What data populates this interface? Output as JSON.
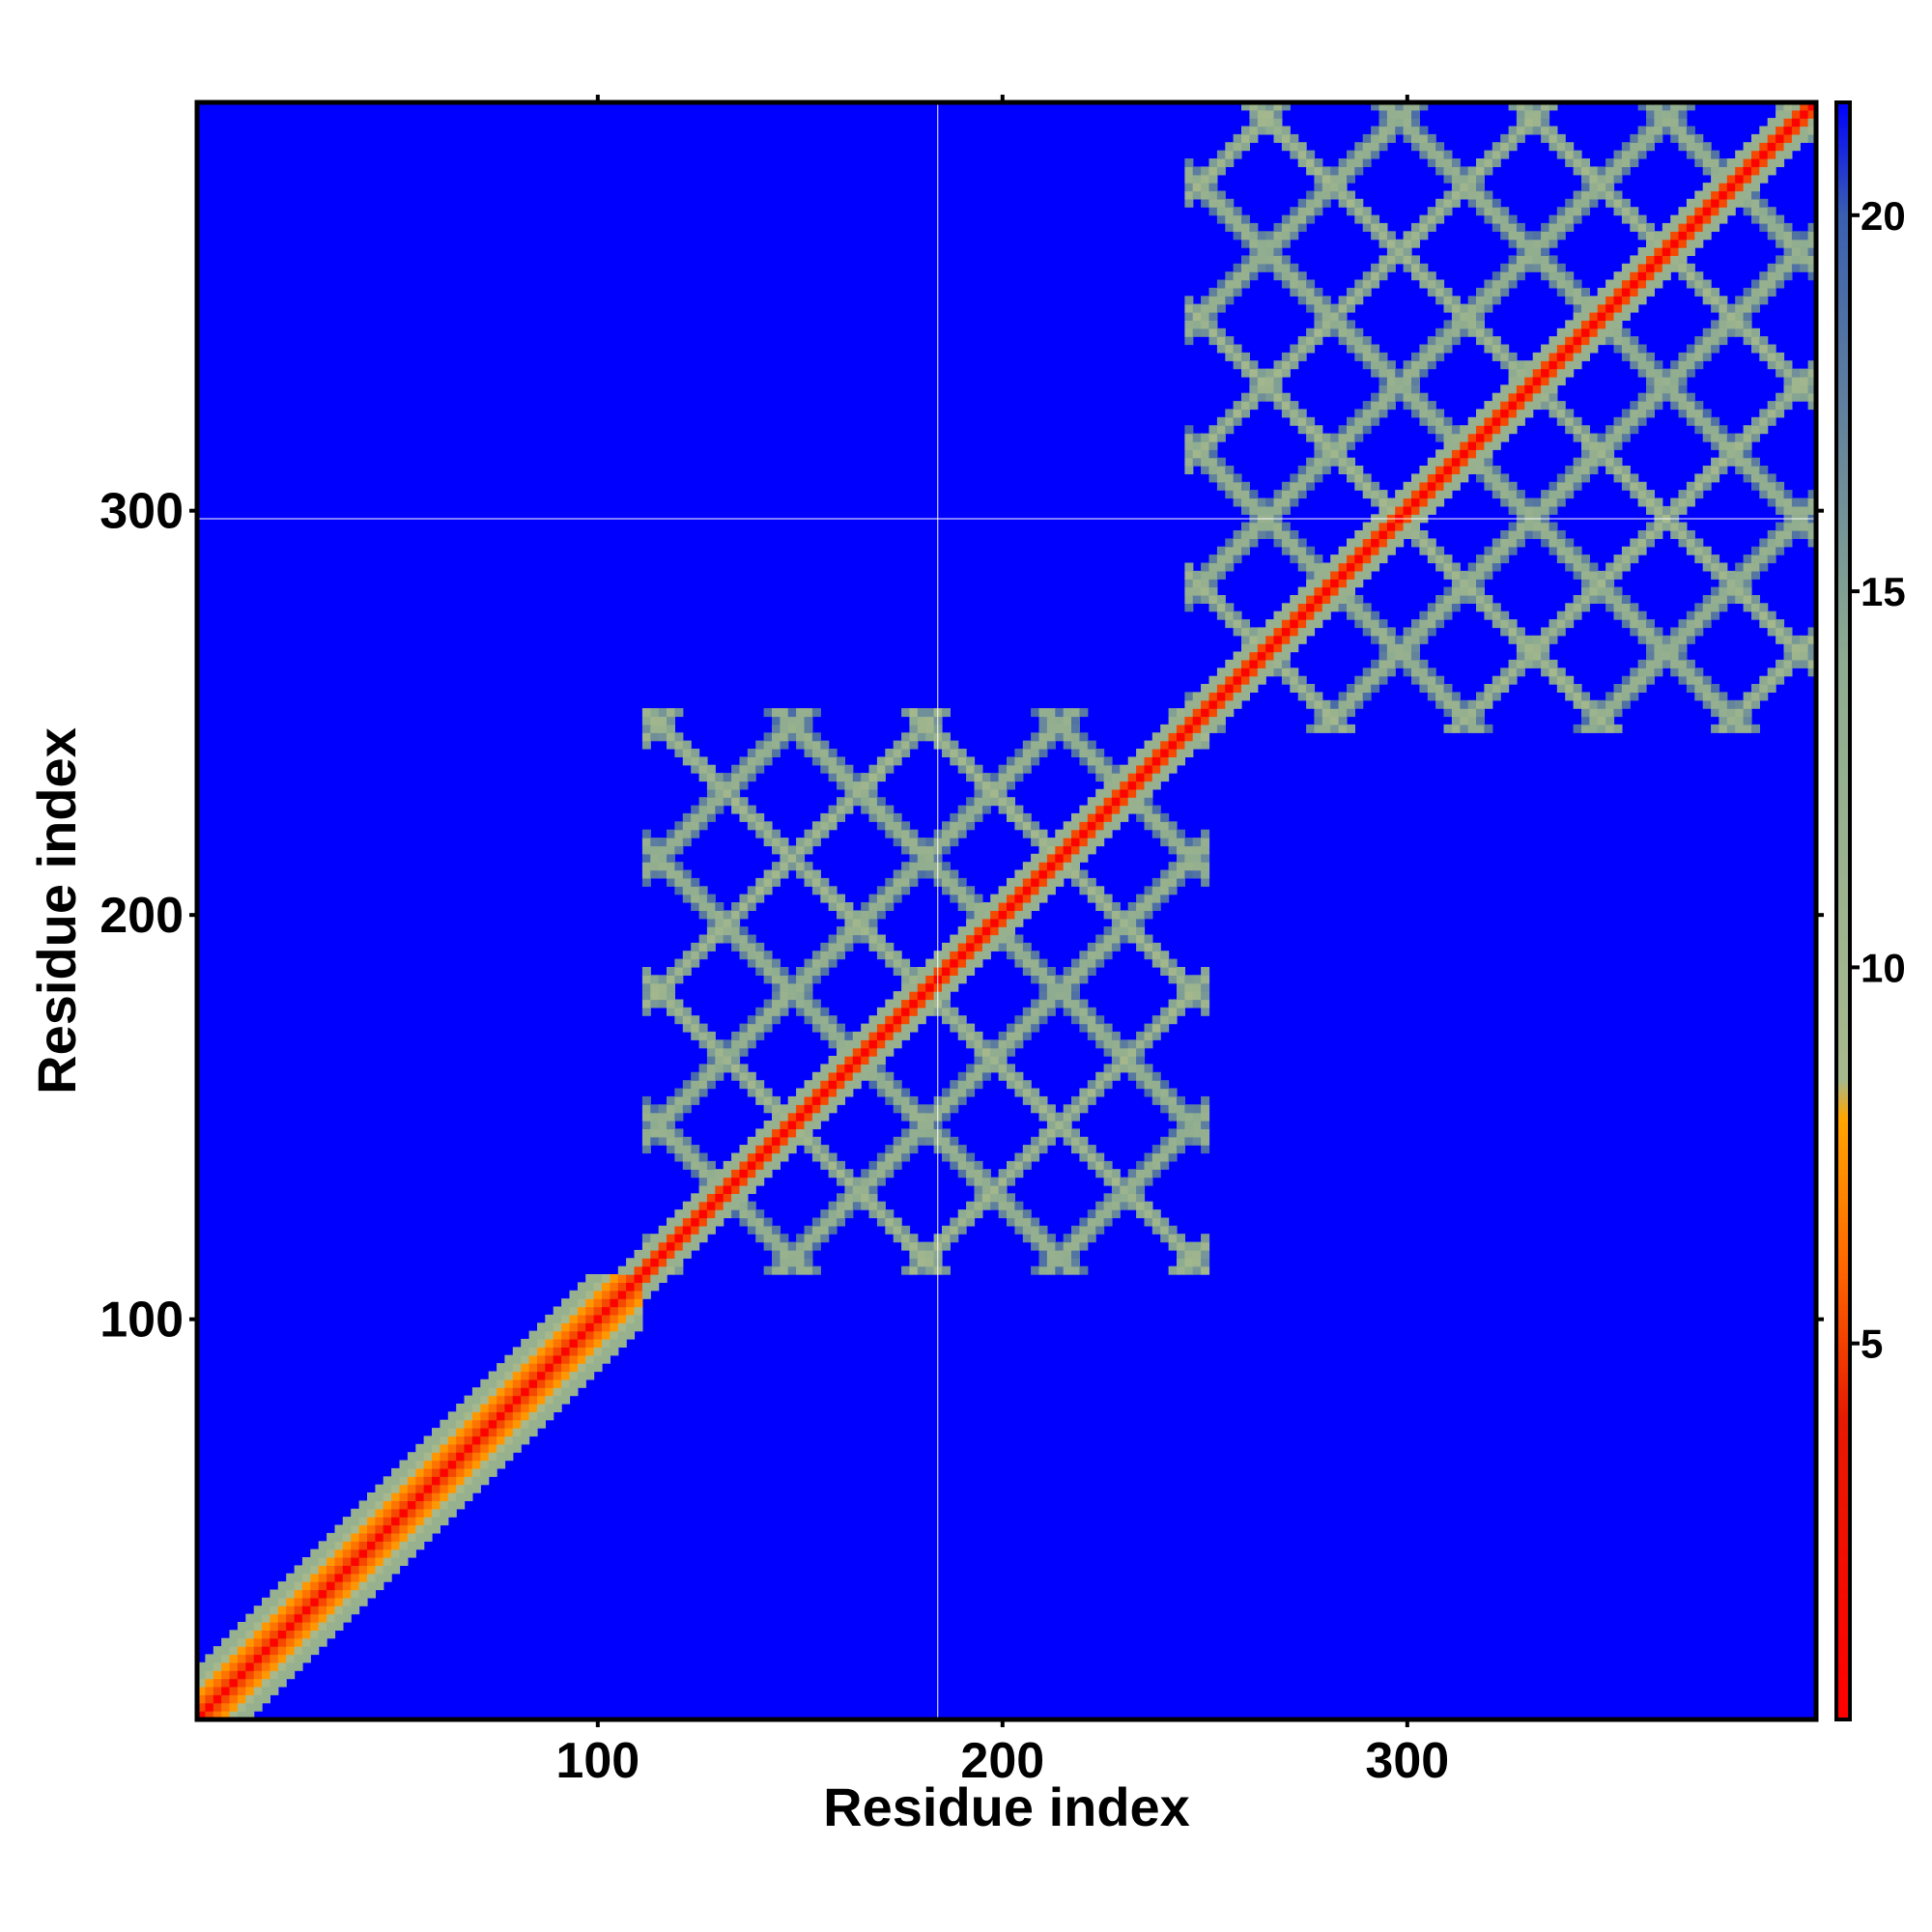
{
  "chart_data": {
    "type": "heatmap",
    "title": "",
    "xlabel": "Residue index",
    "ylabel": "Residue index",
    "xlim": [
      1,
      401
    ],
    "ylim": [
      1,
      401
    ],
    "x_ticks": [
      100,
      200,
      300
    ],
    "y_ticks": [
      100,
      200,
      300
    ],
    "x_tick_labels": [
      "100",
      "200",
      "300"
    ],
    "y_tick_labels": [
      "100",
      "200",
      "300"
    ],
    "colorbar": {
      "range": [
        0,
        21.5
      ],
      "ticks": [
        5,
        10,
        15,
        20
      ],
      "tick_labels": [
        "5",
        "10",
        "15",
        "20"
      ],
      "stops": [
        {
          "value": 0,
          "color": "#ff0000"
        },
        {
          "value": 4,
          "color": "#e61a00"
        },
        {
          "value": 6,
          "color": "#ff6600"
        },
        {
          "value": 8,
          "color": "#ffa500"
        },
        {
          "value": 8.5,
          "color": "#a7b98c"
        },
        {
          "value": 14,
          "color": "#8eac90"
        },
        {
          "value": 18,
          "color": "#5879a0"
        },
        {
          "value": 20,
          "color": "#3a5fb0"
        },
        {
          "value": 21.5,
          "color": "#0000ff"
        }
      ]
    },
    "background_color": "#0000ff",
    "reference_lines": {
      "x": 184,
      "y": 298
    },
    "main_diagonal": {
      "from": [
        1,
        1
      ],
      "to": [
        401,
        401
      ]
    },
    "contact_clusters": [
      {
        "center": [
          180,
          180
        ],
        "half_width": 70,
        "spacing": 33
      },
      {
        "center": [
          330,
          330
        ],
        "half_width": 85,
        "spacing": 33
      }
    ],
    "grid": false,
    "legend": "none"
  }
}
